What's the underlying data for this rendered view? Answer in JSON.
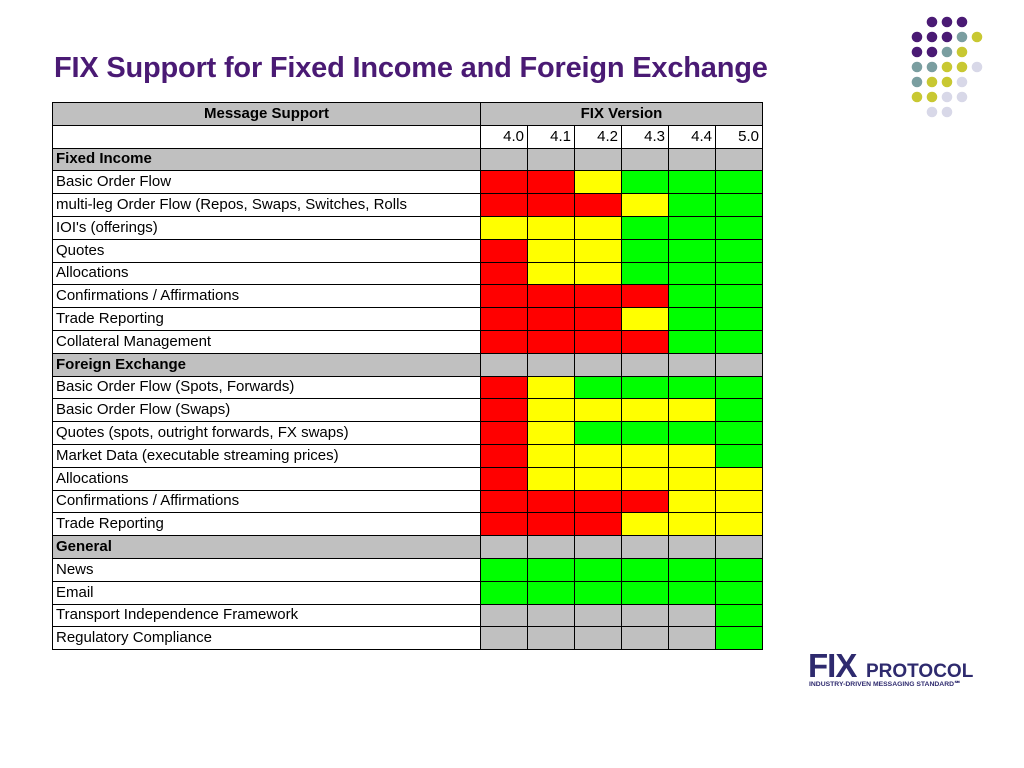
{
  "title": "FIX Support for Fixed Income and Foreign Exchange",
  "table": {
    "header_label": "Message Support",
    "header_version": "FIX Version",
    "versions": [
      "4.0",
      "4.1",
      "4.2",
      "4.3",
      "4.4",
      "5.0"
    ],
    "sections": [
      {
        "name": "Fixed Income",
        "rows": [
          {
            "label": "Basic Order Flow",
            "status": [
              "red",
              "red",
              "yellow",
              "green",
              "green",
              "green"
            ]
          },
          {
            "label": "multi-leg Order Flow (Repos, Swaps, Switches, Rolls",
            "status": [
              "red",
              "red",
              "red",
              "yellow",
              "green",
              "green"
            ]
          },
          {
            "label": "IOI's (offerings)",
            "status": [
              "yellow",
              "yellow",
              "yellow",
              "green",
              "green",
              "green"
            ]
          },
          {
            "label": "Quotes",
            "status": [
              "red",
              "yellow",
              "yellow",
              "green",
              "green",
              "green"
            ]
          },
          {
            "label": "Allocations",
            "status": [
              "red",
              "yellow",
              "yellow",
              "green",
              "green",
              "green"
            ]
          },
          {
            "label": "Confirmations / Affirmations",
            "status": [
              "red",
              "red",
              "red",
              "red",
              "green",
              "green"
            ]
          },
          {
            "label": "Trade Reporting",
            "status": [
              "red",
              "red",
              "red",
              "yellow",
              "green",
              "green"
            ]
          },
          {
            "label": "Collateral Management",
            "status": [
              "red",
              "red",
              "red",
              "red",
              "green",
              "green"
            ]
          }
        ]
      },
      {
        "name": "Foreign Exchange",
        "rows": [
          {
            "label": "Basic Order Flow (Spots, Forwards)",
            "status": [
              "red",
              "yellow",
              "green",
              "green",
              "green",
              "green"
            ]
          },
          {
            "label": "Basic Order Flow (Swaps)",
            "status": [
              "red",
              "yellow",
              "yellow",
              "yellow",
              "yellow",
              "green"
            ]
          },
          {
            "label": "Quotes (spots, outright forwards, FX swaps)",
            "status": [
              "red",
              "yellow",
              "green",
              "green",
              "green",
              "green"
            ]
          },
          {
            "label": "Market Data (executable streaming prices)",
            "status": [
              "red",
              "yellow",
              "yellow",
              "yellow",
              "yellow",
              "green"
            ]
          },
          {
            "label": "Allocations",
            "status": [
              "red",
              "yellow",
              "yellow",
              "yellow",
              "yellow",
              "yellow"
            ]
          },
          {
            "label": "Confirmations / Affirmations",
            "status": [
              "red",
              "red",
              "red",
              "red",
              "yellow",
              "yellow"
            ]
          },
          {
            "label": "Trade Reporting",
            "status": [
              "red",
              "red",
              "red",
              "yellow",
              "yellow",
              "yellow"
            ]
          }
        ]
      },
      {
        "name": "General",
        "rows": [
          {
            "label": "News",
            "status": [
              "green",
              "green",
              "green",
              "green",
              "green",
              "green"
            ]
          },
          {
            "label": "Email",
            "status": [
              "green",
              "green",
              "green",
              "green",
              "green",
              "green"
            ]
          },
          {
            "label": "Transport Independence Framework",
            "status": [
              "gray",
              "gray",
              "gray",
              "gray",
              "gray",
              "green"
            ]
          },
          {
            "label": "Regulatory Compliance",
            "status": [
              "gray",
              "gray",
              "gray",
              "gray",
              "gray",
              "green"
            ]
          }
        ]
      }
    ]
  },
  "logo": {
    "brand": "FIX",
    "product": "PROTOCOL",
    "tagline": "INDUSTRY-DRIVEN MESSAGING STANDARD℠"
  },
  "colors": {
    "title": "#4a1a74",
    "red": "#ff0000",
    "yellow": "#ffff00",
    "green": "#00ff00",
    "gray": "#c0c0c0",
    "dot_purple": "#4a1a74",
    "dot_teal": "#7a9ea0",
    "dot_olive": "#c8c832",
    "dot_lavender": "#d8d8e8"
  }
}
